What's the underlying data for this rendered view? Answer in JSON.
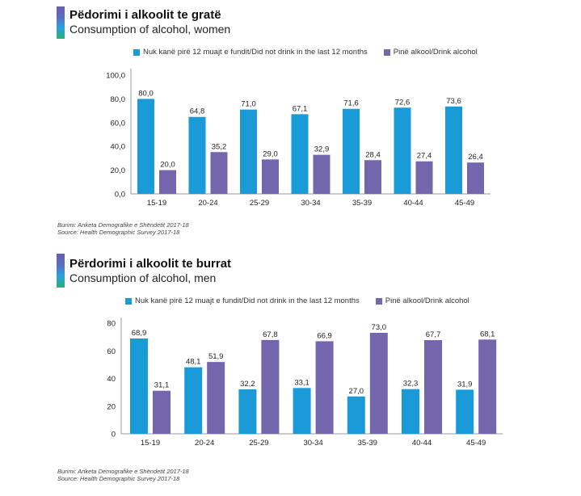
{
  "colors": {
    "not_drink": "#1a9bd7",
    "drink": "#7366ad",
    "axis": "#999999"
  },
  "chart_data": [
    {
      "type": "bar",
      "title": "Pëdorimi i alkoolit te gratë",
      "subtitle": "Consumption of alcohol, women",
      "categories": [
        "15-19",
        "20-24",
        "25-29",
        "30-34",
        "35-39",
        "40-44",
        "45-49"
      ],
      "series": [
        {
          "name": "Nuk kanë pirë 12 muajt e fundit/Did not drink in the last 12 months",
          "color_key": "not_drink",
          "values": [
            80.0,
            64.8,
            71.0,
            67.1,
            71.6,
            72.6,
            73.6
          ],
          "labels": [
            "80,0",
            "64,8",
            "71,0",
            "67,1",
            "71,6",
            "72,6",
            "73,6"
          ]
        },
        {
          "name": "Pinë alkool/Drink alcohol",
          "color_key": "drink",
          "values": [
            20.0,
            35.2,
            29.0,
            32.9,
            28.4,
            27.4,
            26.4
          ],
          "labels": [
            "20,0",
            "35,2",
            "29,0",
            "32,9",
            "28,4",
            "27,4",
            "26,4"
          ]
        }
      ],
      "ylim": [
        0,
        100
      ],
      "yticks": [
        0,
        20,
        40,
        60,
        80,
        100
      ],
      "ytick_labels": [
        "0,0",
        "20,0",
        "40,0",
        "60,0",
        "80,0",
        "100,0"
      ],
      "xlabel": "",
      "ylabel": "",
      "grid": false,
      "legend_position": "top",
      "source_lines": [
        "Burimi: Anketa Demografike e Shëndetit 2017-18",
        "Source: Health Demographic Survey 2017-18"
      ]
    },
    {
      "type": "bar",
      "title": "Përdorimi i alkoolit te burrat",
      "subtitle": "Consumption of alcohol, men",
      "categories": [
        "15-19",
        "20-24",
        "25-29",
        "30-34",
        "35-39",
        "40-44",
        "45-49"
      ],
      "series": [
        {
          "name": "Nuk kanë pirë 12 muajt e fundit/Did not drink in the last 12 months",
          "color_key": "not_drink",
          "values": [
            68.9,
            48.1,
            32.2,
            33.1,
            27.0,
            32.3,
            31.9
          ],
          "labels": [
            "68,9",
            "48,1",
            "32,2",
            "33,1",
            "27,0",
            "32,3",
            "31,9"
          ]
        },
        {
          "name": "Pinë alkool/Drink alcohol",
          "color_key": "drink",
          "values": [
            31.1,
            51.9,
            67.8,
            66.9,
            73.0,
            67.7,
            68.1
          ],
          "labels": [
            "31,1",
            "51,9",
            "67,8",
            "66,9",
            "73,0",
            "67,7",
            "68,1"
          ]
        }
      ],
      "ylim": [
        0,
        80
      ],
      "yticks": [
        0,
        20,
        40,
        60,
        80
      ],
      "ytick_labels": [
        "0",
        "20",
        "40",
        "60",
        "80"
      ],
      "xlabel": "",
      "ylabel": "",
      "grid": false,
      "legend_position": "top",
      "source_lines": [
        "Burimi: Anketa Demografike e Shëndetit 2017-18",
        "Source: Health Demographic Survey 2017-18"
      ]
    }
  ]
}
